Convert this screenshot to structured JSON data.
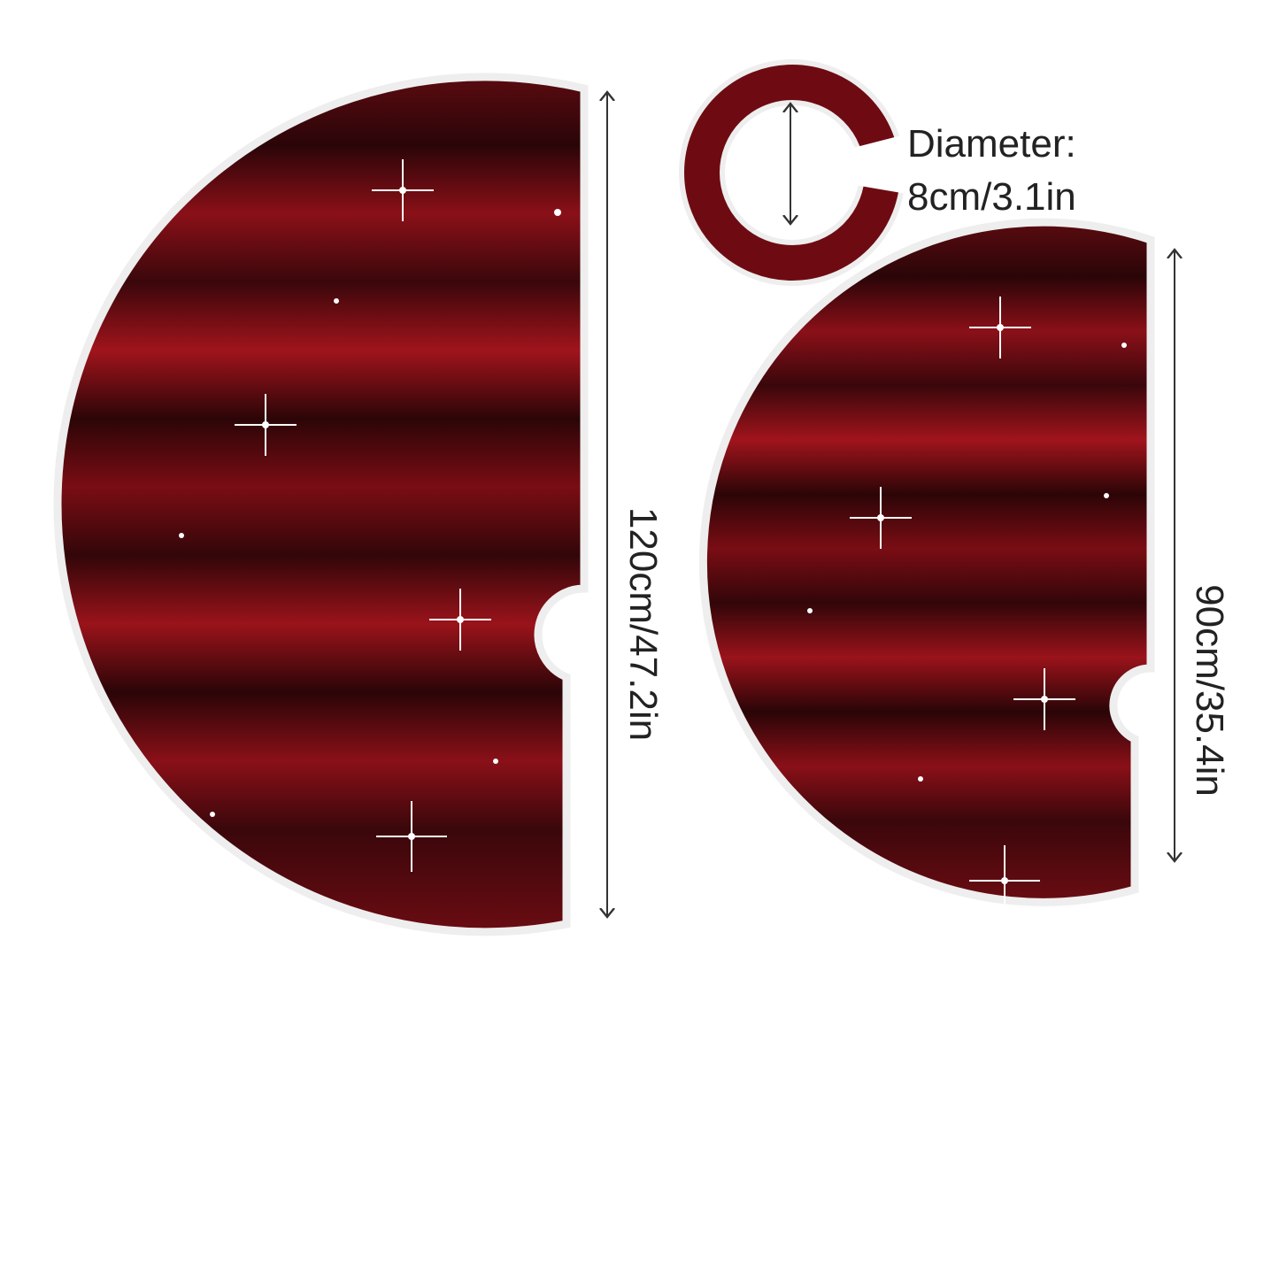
{
  "large_skirt": {
    "size": "120cm/47.2in"
  },
  "small_skirt": {
    "size": "90cm/35.4in"
  },
  "center_hole": {
    "label": "Diameter:",
    "size": "8cm/3.1in"
  }
}
